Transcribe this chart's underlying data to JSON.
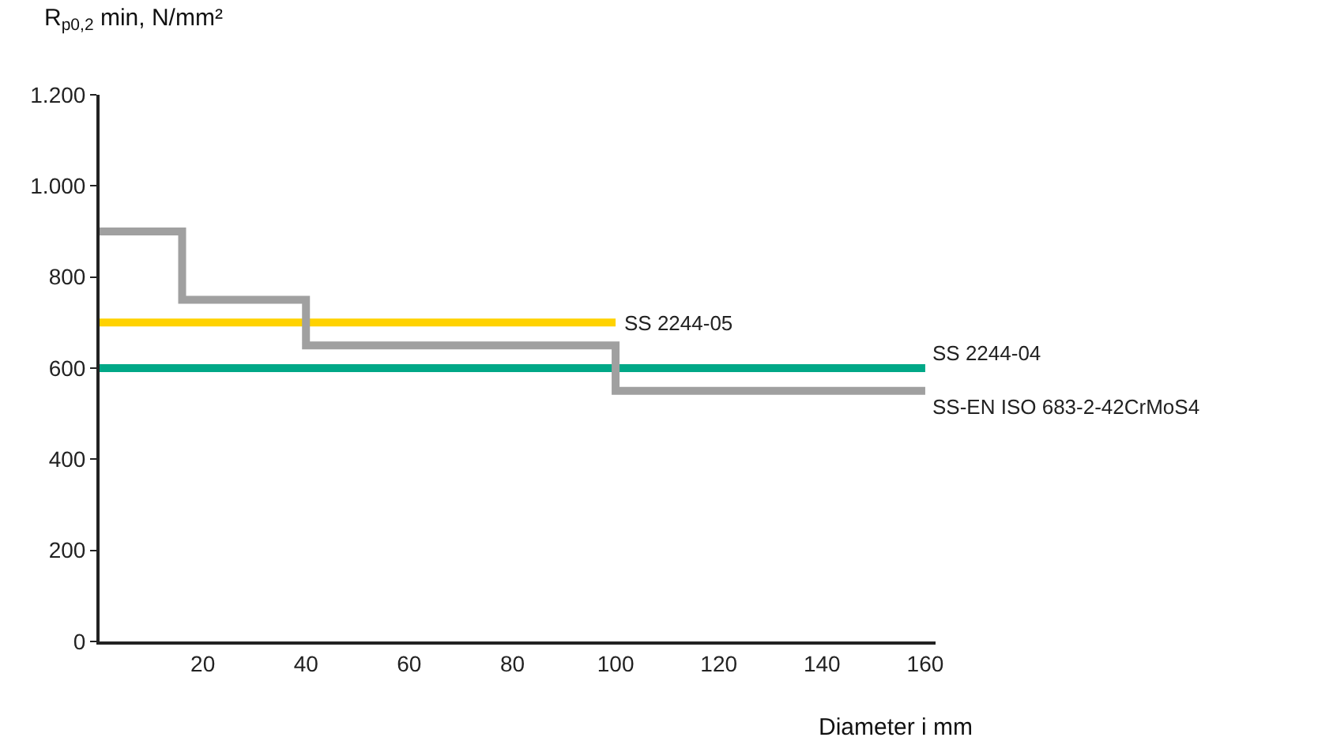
{
  "chart_data": {
    "type": "step",
    "ylabel": "R$_{p0,2}$ min, N/mm²",
    "xlabel": "Diameter i mm",
    "xlim": [
      0,
      162
    ],
    "xticks": [
      20,
      40,
      60,
      80,
      100,
      120,
      140,
      160
    ],
    "ylim": [
      0,
      1200
    ],
    "yticks": [
      0,
      200,
      400,
      600,
      800,
      {
        "value": 1000,
        "label": "1.000"
      },
      {
        "value": 1200,
        "label": "1.200"
      }
    ],
    "grid": false,
    "legend": false,
    "line_style": "solid",
    "marker": "none",
    "series": [
      {
        "name": "SS 2244-05",
        "color": "#ffd200",
        "x": [
          0,
          100
        ],
        "values": [
          700,
          700
        ]
      },
      {
        "name": "SS 2244-04",
        "color": "#00a887",
        "x": [
          0,
          160
        ],
        "values": [
          600,
          600
        ]
      },
      {
        "name": "SS-EN ISO 683-2-42CrMoS4",
        "color": "#a0a0a0",
        "x": [
          0,
          16,
          40,
          100,
          160
        ],
        "values": [
          900,
          750,
          650,
          550,
          550
        ]
      }
    ]
  }
}
